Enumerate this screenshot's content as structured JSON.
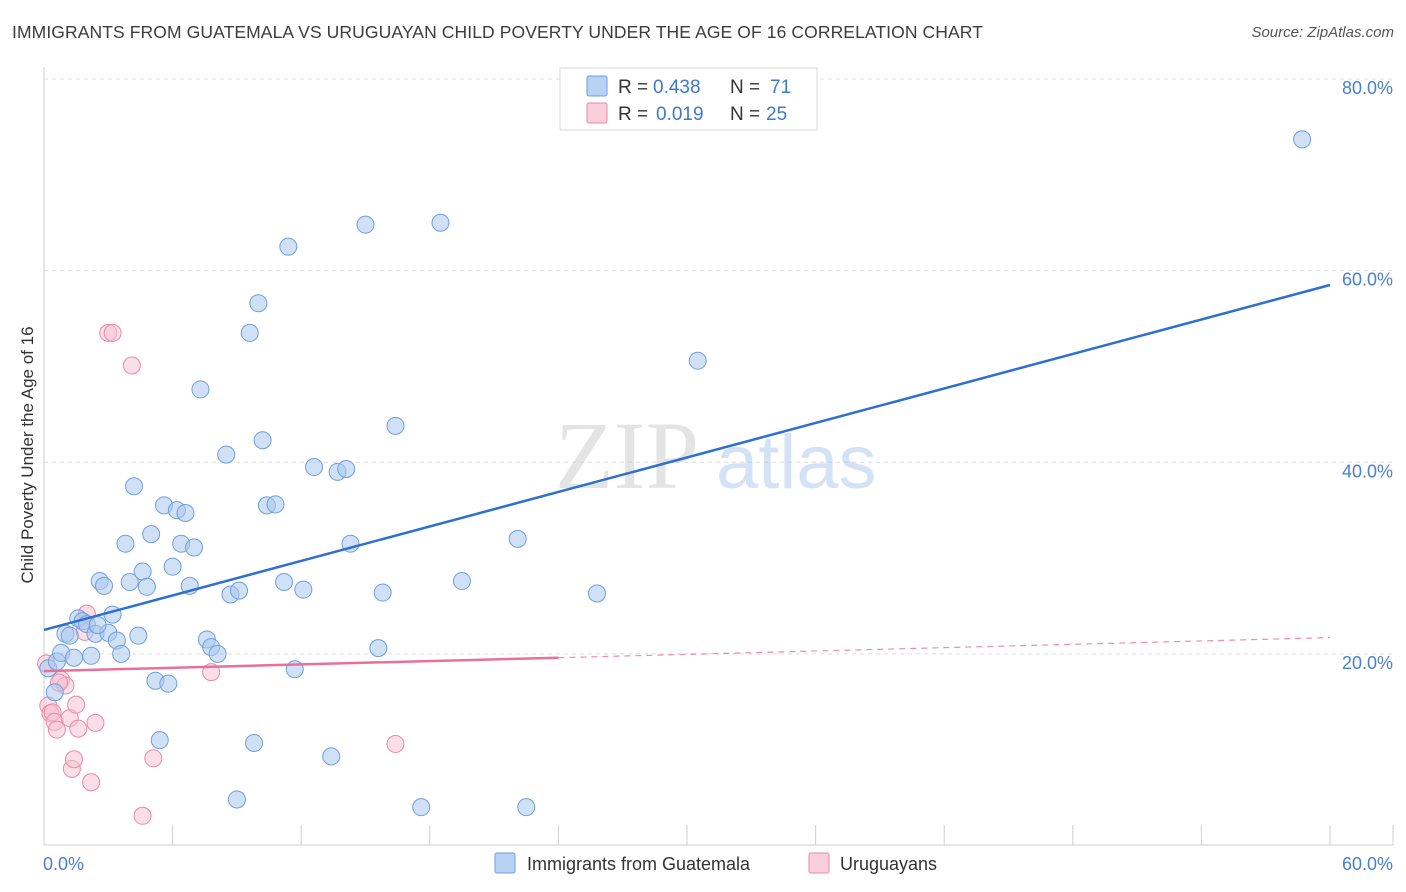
{
  "title": "IMMIGRANTS FROM GUATEMALA VS URUGUAYAN CHILD POVERTY UNDER THE AGE OF 16 CORRELATION CHART",
  "source": "Source: ZipAtlas.com",
  "watermark": {
    "zip": "ZIP",
    "atlas": "atlas"
  },
  "chart_data": {
    "type": "scatter",
    "title": "IMMIGRANTS FROM GUATEMALA VS URUGUAYAN CHILD POVERTY UNDER THE AGE OF 16 CORRELATION CHART",
    "xlabel": "",
    "ylabel": "Child Poverty Under the Age of 16",
    "xlim": [
      0,
      60
    ],
    "ylim": [
      0,
      80
    ],
    "x_tick_labels": {
      "min": "0.0%",
      "max": "60.0%"
    },
    "y_ticks": [
      {
        "value": 80,
        "label": "80.0%"
      },
      {
        "value": 60,
        "label": "60.0%"
      },
      {
        "value": 40,
        "label": "40.0%"
      },
      {
        "value": 20,
        "label": "20.0%"
      }
    ],
    "legend_stats": [
      {
        "r_label": "R =",
        "r_value": "0.438",
        "n_label": "N =",
        "n_value": "71"
      },
      {
        "r_label": "R =",
        "r_value": "0.019",
        "n_label": "N =",
        "n_value": "25"
      }
    ],
    "series": [
      {
        "name": "Immigrants from Guatemala",
        "color": "#a9c8ef",
        "stroke": "#6f9fde",
        "trend_color": "#2f6fcf",
        "trend": {
          "x0": 0,
          "y0": 22.5,
          "x1": 60,
          "y1": 58.5
        },
        "points": [
          [
            0.2,
            18.5
          ],
          [
            0.5,
            16.0
          ],
          [
            0.6,
            19.2
          ],
          [
            0.8,
            20.1
          ],
          [
            1.0,
            22.1
          ],
          [
            1.2,
            21.9
          ],
          [
            1.4,
            19.6
          ],
          [
            1.6,
            23.7
          ],
          [
            1.8,
            23.4
          ],
          [
            2.0,
            23.1
          ],
          [
            2.2,
            19.8
          ],
          [
            2.4,
            22.1
          ],
          [
            2.6,
            27.6
          ],
          [
            2.8,
            27.1
          ],
          [
            3.0,
            22.2
          ],
          [
            3.2,
            24.1
          ],
          [
            3.4,
            21.4
          ],
          [
            3.6,
            20.0
          ],
          [
            3.8,
            31.5
          ],
          [
            4.0,
            27.5
          ],
          [
            4.2,
            37.5
          ],
          [
            4.4,
            21.9
          ],
          [
            4.6,
            28.6
          ],
          [
            4.8,
            27.0
          ],
          [
            5.0,
            32.5
          ],
          [
            5.2,
            17.2
          ],
          [
            5.4,
            11.0
          ],
          [
            5.6,
            35.5
          ],
          [
            5.8,
            16.9
          ],
          [
            6.0,
            29.1
          ],
          [
            6.2,
            35.0
          ],
          [
            6.4,
            31.5
          ],
          [
            6.6,
            34.7
          ],
          [
            6.8,
            27.1
          ],
          [
            7.0,
            31.1
          ],
          [
            7.3,
            47.6
          ],
          [
            7.6,
            21.5
          ],
          [
            7.8,
            20.7
          ],
          [
            8.1,
            20.0
          ],
          [
            8.5,
            40.8
          ],
          [
            8.7,
            26.2
          ],
          [
            9.0,
            4.8
          ],
          [
            9.1,
            26.6
          ],
          [
            9.6,
            53.5
          ],
          [
            9.8,
            10.7
          ],
          [
            10.0,
            56.6
          ],
          [
            10.2,
            42.3
          ],
          [
            10.4,
            35.5
          ],
          [
            10.8,
            35.6
          ],
          [
            11.2,
            27.5
          ],
          [
            11.4,
            62.5
          ],
          [
            11.7,
            18.4
          ],
          [
            12.1,
            26.7
          ],
          [
            12.6,
            39.5
          ],
          [
            13.4,
            9.3
          ],
          [
            13.7,
            39.0
          ],
          [
            14.1,
            39.3
          ],
          [
            14.3,
            31.5
          ],
          [
            15.0,
            64.8
          ],
          [
            15.6,
            20.6
          ],
          [
            15.8,
            26.4
          ],
          [
            16.4,
            43.8
          ],
          [
            17.6,
            4.0
          ],
          [
            18.5,
            65.0
          ],
          [
            19.5,
            27.6
          ],
          [
            22.1,
            32.0
          ],
          [
            22.5,
            4.0
          ],
          [
            25.8,
            26.3
          ],
          [
            30.5,
            50.6
          ],
          [
            58.7,
            73.7
          ],
          [
            2.5,
            23.0
          ]
        ]
      },
      {
        "name": "Uruguayans",
        "color": "#f7c3d2",
        "stroke": "#e98aa8",
        "trend_color": "#e8709a",
        "trend": {
          "x0": 0,
          "y0": 18.2,
          "x1": 24,
          "y1": 19.6
        },
        "trend_dashed": {
          "x0": 24,
          "y0": 19.6,
          "x1": 60,
          "y1": 21.7
        },
        "points": [
          [
            0.1,
            19.0
          ],
          [
            0.2,
            14.6
          ],
          [
            0.3,
            13.8
          ],
          [
            0.4,
            13.9
          ],
          [
            0.5,
            12.9
          ],
          [
            0.6,
            12.1
          ],
          [
            0.8,
            17.3
          ],
          [
            1.0,
            16.7
          ],
          [
            1.2,
            13.3
          ],
          [
            1.3,
            8.0
          ],
          [
            1.4,
            9.0
          ],
          [
            1.5,
            14.7
          ],
          [
            1.6,
            12.2
          ],
          [
            1.9,
            22.3
          ],
          [
            2.0,
            24.2
          ],
          [
            2.2,
            6.6
          ],
          [
            2.4,
            12.8
          ],
          [
            3.0,
            53.5
          ],
          [
            3.2,
            53.5
          ],
          [
            4.1,
            50.1
          ],
          [
            4.6,
            3.1
          ],
          [
            5.1,
            9.1
          ],
          [
            7.8,
            18.1
          ],
          [
            16.4,
            10.6
          ],
          [
            0.7,
            17.0
          ]
        ]
      }
    ]
  }
}
